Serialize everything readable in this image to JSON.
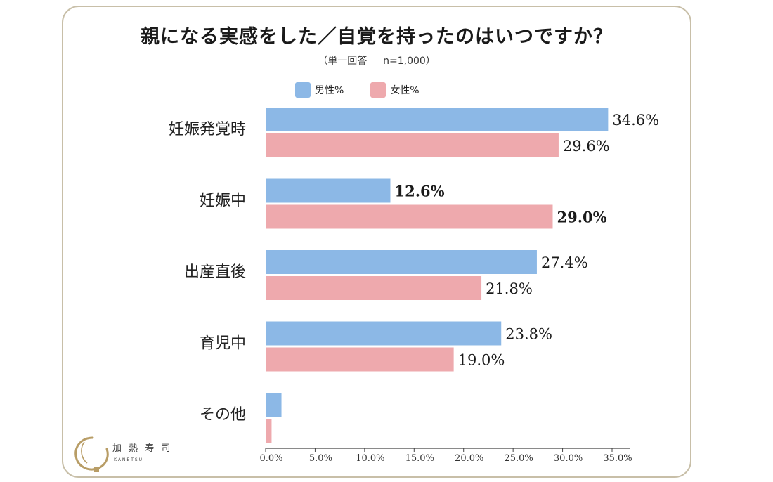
{
  "title": "親になる実感をした／自覚を持ったのはいつですか？",
  "subtitle": "（単一回答 ｜ n=1,000）",
  "logo": {
    "text": "加 熱 寿 司",
    "roman": "KANETSU"
  },
  "colors": {
    "male": "#8cb8e6",
    "female": "#eea9ad",
    "axis": "#444444",
    "frame": "#c8bfa8"
  },
  "chart_data": {
    "type": "bar",
    "orientation": "horizontal",
    "title": "親になる実感をした／自覚を持ったのはいつですか？",
    "subtitle": "（単一回答 ｜ n=1,000）",
    "categories": [
      "妊娠発覚時",
      "妊娠中",
      "出産直後",
      "育児中",
      "その他"
    ],
    "series": [
      {
        "name": "男性%",
        "values": [
          34.6,
          12.6,
          27.4,
          23.8,
          1.6
        ]
      },
      {
        "name": "女性%",
        "values": [
          29.6,
          29.0,
          21.8,
          19.0,
          0.6
        ]
      }
    ],
    "data_labels": [
      [
        "34.6%",
        "12.6%",
        "27.4%",
        "23.8%",
        ""
      ],
      [
        "29.6%",
        "29.0%",
        "21.8%",
        "19.0%",
        ""
      ]
    ],
    "bold_labels": [
      [
        false,
        true,
        false,
        false,
        false
      ],
      [
        false,
        true,
        false,
        false,
        false
      ]
    ],
    "xlim": [
      0,
      35
    ],
    "xticks": [
      "0.0%",
      "5.0%",
      "10.0%",
      "15.0%",
      "20.0%",
      "25.0%",
      "30.0%",
      "35.0%"
    ],
    "grid": false,
    "legend_position": "top"
  }
}
